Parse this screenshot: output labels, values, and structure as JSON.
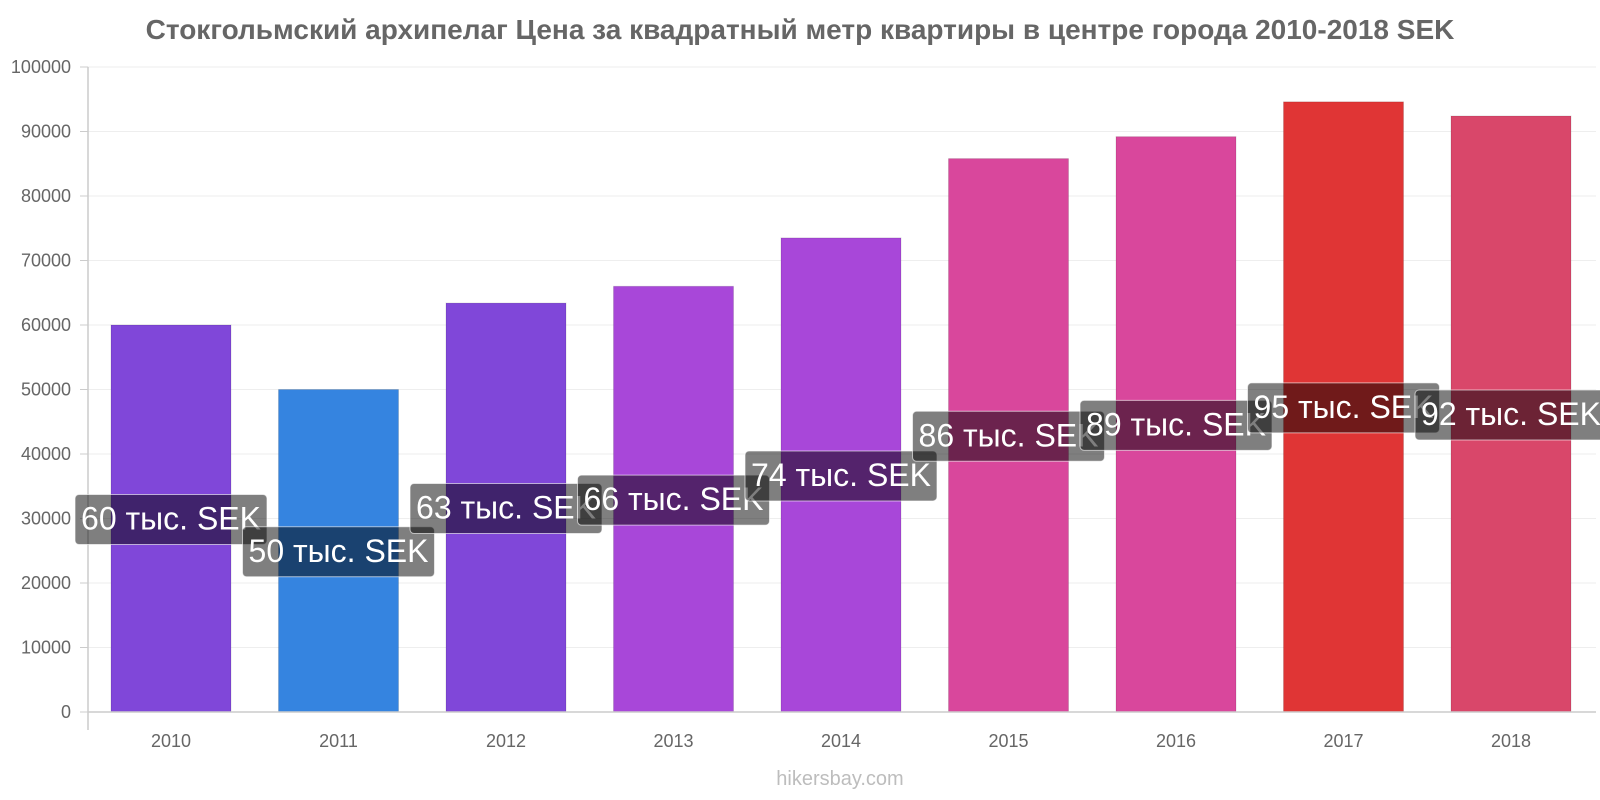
{
  "chart_data": {
    "type": "bar",
    "title": "Стокгольмский архипелаг Цена за квадратный метр квартиры в центре города 2010-2018 SEK",
    "categories": [
      "2010",
      "2011",
      "2012",
      "2013",
      "2014",
      "2015",
      "2016",
      "2017",
      "2018"
    ],
    "values": [
      60000,
      50000,
      63400,
      66000,
      73500,
      85800,
      89200,
      94600,
      92400
    ],
    "data_labels": [
      "60 тыс. SEK",
      "50 тыс. SEK",
      "63 тыс. SEK",
      "66 тыс. SEK",
      "74 тыс. SEK",
      "86 тыс. SEK",
      "89 тыс. SEK",
      "95 тыс. SEK",
      "92 тыс. SEK"
    ],
    "bar_colors": [
      "#8047d9",
      "#3584e0",
      "#8047d9",
      "#a847d9",
      "#a847d9",
      "#d9479c",
      "#d9479c",
      "#e03535",
      "#d9476a"
    ],
    "ylim": [
      0,
      100000
    ],
    "yticks": [
      "0",
      "10000",
      "20000",
      "30000",
      "40000",
      "50000",
      "60000",
      "70000",
      "80000",
      "90000",
      "100000"
    ],
    "grid": true,
    "xlabel": "",
    "ylabel": ""
  },
  "footer": "hikersbay.com"
}
